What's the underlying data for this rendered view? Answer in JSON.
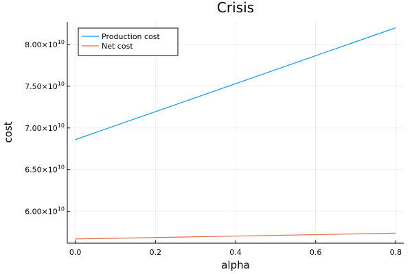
{
  "chart_data": {
    "type": "line",
    "title": "Crisis",
    "xlabel": "alpha",
    "ylabel": "cost",
    "xlim": [
      -0.02,
      0.82
    ],
    "ylim": [
      56200000000.0,
      82700000000.0
    ],
    "xticks": [
      0.0,
      0.2,
      0.4,
      0.6,
      0.8
    ],
    "xtick_labels": [
      "0.0",
      "0.2",
      "0.4",
      "0.6",
      "0.8"
    ],
    "yticks": [
      60000000000.0,
      65000000000.0,
      70000000000.0,
      75000000000.0,
      80000000000.0
    ],
    "ytick_labels": [
      {
        "mantissa": "6.00×10",
        "exp": "10"
      },
      {
        "mantissa": "6.50×10",
        "exp": "10"
      },
      {
        "mantissa": "7.00×10",
        "exp": "10"
      },
      {
        "mantissa": "7.50×10",
        "exp": "10"
      },
      {
        "mantissa": "8.00×10",
        "exp": "10"
      }
    ],
    "grid": true,
    "legend_position": "top-left",
    "series": [
      {
        "name": "Production cost",
        "color": "#009af9",
        "x": [
          0.0,
          0.8
        ],
        "y": [
          68600000000.0,
          82000000000.0
        ]
      },
      {
        "name": "Net cost",
        "color": "#e26f46",
        "x": [
          0.0,
          0.8
        ],
        "y": [
          56700000000.0,
          57400000000.0
        ]
      }
    ]
  }
}
